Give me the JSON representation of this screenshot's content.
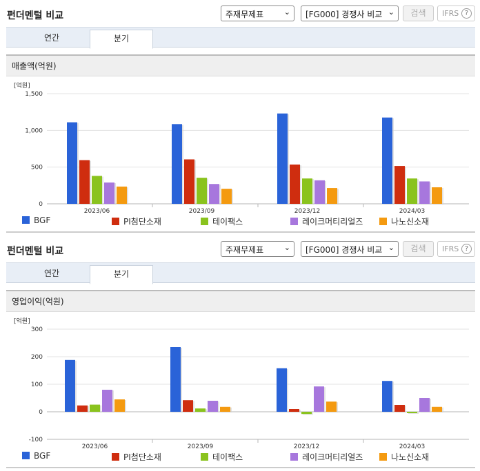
{
  "sections": [
    {
      "title": "펀더멘털 비교",
      "select_statement": "주재무제표",
      "select_compare": "[FG000] 경쟁사 비교",
      "search_label": "검색",
      "ifrs_label": "IFRS",
      "help_glyph": "?",
      "tabs": [
        {
          "label": "연간",
          "active": false
        },
        {
          "label": "분기",
          "active": true
        }
      ],
      "panel_title": "매출액(억원)",
      "unit_label": "[억원]",
      "chart_data": {
        "type": "bar",
        "title": "매출액(억원)",
        "ylabel": "[억원]",
        "categories": [
          "2023/06",
          "2023/09",
          "2023/12",
          "2024/03"
        ],
        "ylim": [
          0,
          1500
        ],
        "yticks": [
          0,
          500,
          1000,
          1500
        ],
        "ytick_labels": [
          "0",
          "500",
          "1,000",
          "1,500"
        ],
        "grid": true,
        "legend": "bottom",
        "series": [
          {
            "name": "BGF",
            "color": "#2a63d8",
            "values": [
              1110,
              1085,
              1230,
              1175
            ]
          },
          {
            "name": "PI첨단소재",
            "color": "#cf2d0f",
            "values": [
              595,
              605,
              535,
              515
            ]
          },
          {
            "name": "테이팩스",
            "color": "#8ac31e",
            "values": [
              380,
              355,
              345,
              345
            ]
          },
          {
            "name": "레이크머티리얼즈",
            "color": "#a777dd",
            "values": [
              290,
              270,
              320,
              305
            ]
          },
          {
            "name": "나노신소재",
            "color": "#f49a10",
            "values": [
              235,
              205,
              215,
              225
            ]
          }
        ]
      }
    },
    {
      "title": "펀더멘털 비교",
      "select_statement": "주재무제표",
      "select_compare": "[FG000] 경쟁사 비교",
      "search_label": "검색",
      "ifrs_label": "IFRS",
      "help_glyph": "?",
      "tabs": [
        {
          "label": "연간",
          "active": false
        },
        {
          "label": "분기",
          "active": true
        }
      ],
      "panel_title": "영업이익(억원)",
      "unit_label": "[억원]",
      "chart_data": {
        "type": "bar",
        "title": "영업이익(억원)",
        "ylabel": "[억원]",
        "categories": [
          "2023/06",
          "2023/09",
          "2023/12",
          "2024/03"
        ],
        "ylim": [
          -100,
          300
        ],
        "yticks": [
          -100,
          0,
          100,
          200,
          300
        ],
        "ytick_labels": [
          "-100",
          "0",
          "100",
          "200",
          "300"
        ],
        "grid": true,
        "legend": "bottom",
        "series": [
          {
            "name": "BGF",
            "color": "#2a63d8",
            "values": [
              188,
              235,
              158,
              112
            ]
          },
          {
            "name": "PI첨단소재",
            "color": "#cf2d0f",
            "values": [
              23,
              42,
              10,
              25
            ]
          },
          {
            "name": "테이팩스",
            "color": "#8ac31e",
            "values": [
              26,
              12,
              -8,
              -5
            ]
          },
          {
            "name": "레이크머티리얼즈",
            "color": "#a777dd",
            "values": [
              80,
              40,
              92,
              50
            ]
          },
          {
            "name": "나노신소재",
            "color": "#f49a10",
            "values": [
              45,
              18,
              37,
              18
            ]
          }
        ]
      }
    }
  ]
}
